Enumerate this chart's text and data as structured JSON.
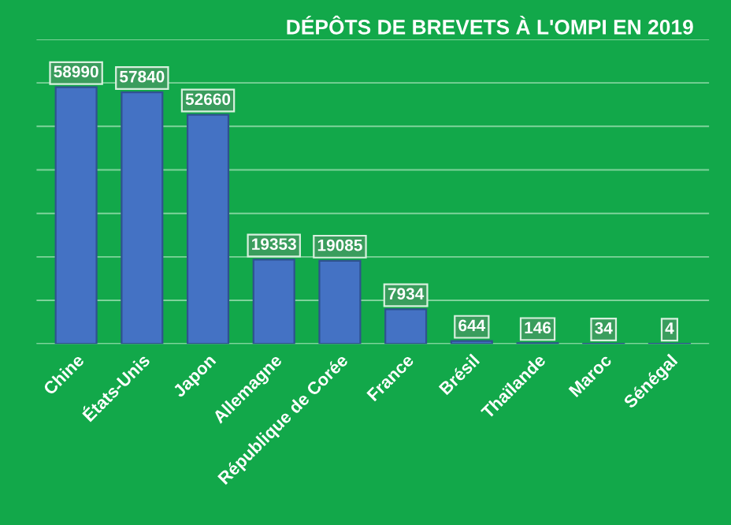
{
  "chart_data": {
    "type": "bar",
    "title": "DÉPÔTS DE BREVETS À L'OMPI EN 2019",
    "categories": [
      "Chine",
      "États-Unis",
      "Japon",
      "Allemagne",
      "République de Corée",
      "France",
      "Brésil",
      "Thaïlande",
      "Maroc",
      "Sénégal"
    ],
    "values": [
      58990,
      57840,
      52660,
      19353,
      19085,
      7934,
      644,
      146,
      34,
      4
    ],
    "color": "#4472c4",
    "ylim": [
      0,
      70000
    ],
    "yticks": [
      {
        "value": 0,
        "label": null
      },
      {
        "value": 10000,
        "label": null
      },
      {
        "value": 20000,
        "label": null
      },
      {
        "value": 30000,
        "label": null
      },
      {
        "value": 40000,
        "label": null
      },
      {
        "value": 50000,
        "label": null
      },
      {
        "value": 60000,
        "label": null
      },
      {
        "value": 70000,
        "label": null
      }
    ],
    "grid": "y",
    "data_labels": true,
    "tick_labels": "x",
    "legend": false
  }
}
